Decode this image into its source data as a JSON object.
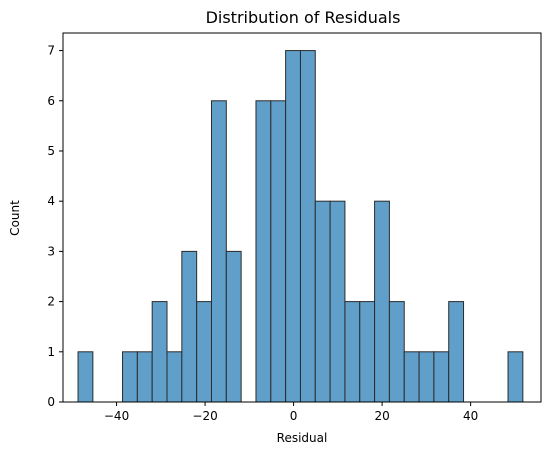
{
  "chart_data": {
    "type": "bar",
    "title": "Distribution of Residuals",
    "xlabel": "Residual",
    "ylabel": "Count",
    "xlim": [
      -52.1,
      55.9
    ],
    "ylim": [
      0,
      7.35
    ],
    "xticks": [
      -40,
      -20,
      0,
      20,
      40
    ],
    "xtick_labels": [
      "−40",
      "−20",
      "0",
      "20",
      "40"
    ],
    "yticks": [
      0,
      1,
      2,
      3,
      4,
      5,
      6,
      7
    ],
    "ytick_labels": [
      "0",
      "1",
      "2",
      "3",
      "4",
      "5",
      "6",
      "7"
    ],
    "bin_start": -48.7,
    "bin_width": 3.35,
    "counts": [
      1,
      0,
      0,
      1,
      1,
      2,
      1,
      3,
      2,
      6,
      3,
      0,
      6,
      6,
      7,
      7,
      4,
      4,
      2,
      2,
      4,
      2,
      1,
      1,
      1,
      2,
      0,
      0,
      0,
      1
    ],
    "bar_color": "#5f9fca",
    "edge_color": "#2b2b2b",
    "grid": false
  }
}
